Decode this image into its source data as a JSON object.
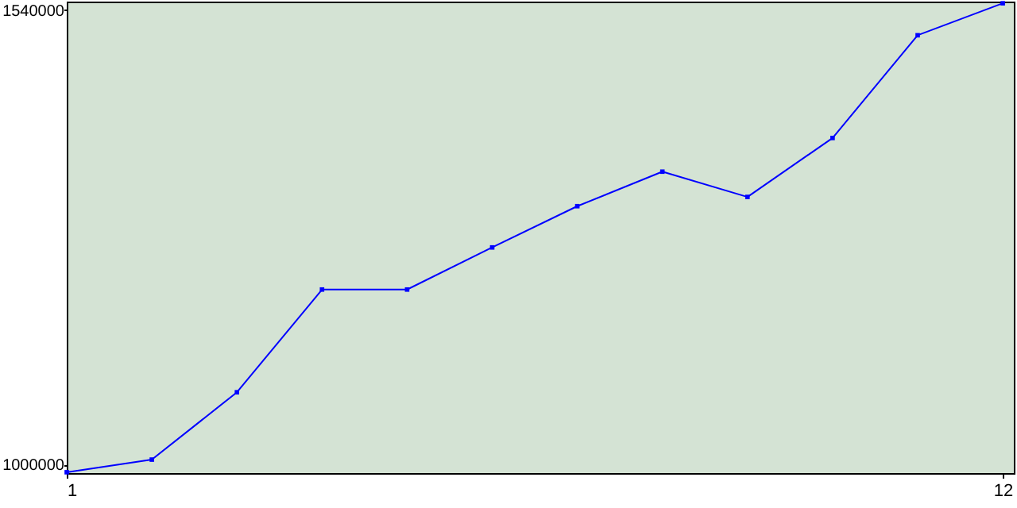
{
  "chart_data": {
    "type": "line",
    "x": [
      1,
      2,
      3,
      4,
      5,
      6,
      7,
      8,
      9,
      10,
      11,
      12
    ],
    "series": [
      {
        "color": "#0000ff",
        "values": [
          991000,
          1006000,
          1086000,
          1208000,
          1208000,
          1258000,
          1307000,
          1348000,
          1318000,
          1388000,
          1510000,
          1548000
        ]
      }
    ],
    "xlim": [
      1,
      12.13
    ],
    "xticks": [
      1,
      12
    ],
    "ylim": [
      990000,
      1550000
    ],
    "yticks": [
      1000000,
      1540000
    ],
    "grid": false,
    "marker": "square"
  }
}
